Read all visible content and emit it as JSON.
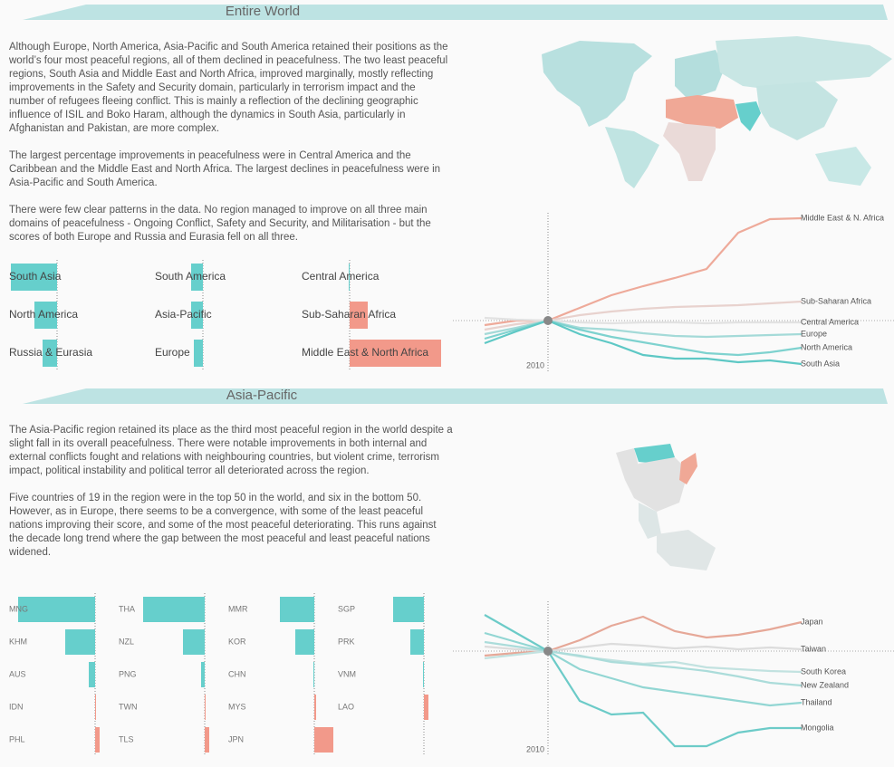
{
  "sections": [
    {
      "title": "Entire World",
      "paragraphs": [
        "Although Europe, North America, Asia-Pacific and South America retained their positions as the world’s four most peaceful regions, all of them declined in peacefulness. The two least peaceful regions, South Asia and Middle East and North Africa, improved marginally, mostly reflecting improvements in the Safety and Security domain, particularly in terrorism impact and the number of refugees fleeing conflict. This is mainly a reflection of the declining geographic influence of ISIL and Boko Haram, although the dynamics in South Asia, particularly in Afghanistan and Pakistan, are more complex.",
        "The largest percentage improvements in peacefulness were in Central America and the Caribbean and the Middle East and North Africa. The largest declines in peacefulness were in Asia-Pacific and South America.",
        "There were few clear patterns in the data. No region managed to improve on all three main domains of peacefulness - Ongoing Conflict, Safety and Security, and Militarisation - but the scores of both Europe and Russia and Eurasia fell on all three."
      ],
      "bars": {
        "type": "bar",
        "categories": [
          "South Asia",
          "North America",
          "Russia & Eurasia",
          "South America",
          "Asia-Pacific",
          "Europe",
          "Central America",
          "Sub-Saharan Africa",
          "Middle East & North Africa"
        ],
        "values": [
          -51,
          -25,
          -16,
          -13,
          -13,
          -10,
          -1,
          20,
          101
        ],
        "colors": {
          "negative": "#66cfcc",
          "positive": "#f2998a"
        }
      },
      "lines": {
        "type": "line",
        "categories": [
          null,
          null,
          "2010",
          null,
          null,
          null,
          null,
          null,
          null,
          null,
          null
        ],
        "ylim": [
          -56,
          119
        ],
        "series": [
          {
            "name": "Middle East & N. Africa",
            "color": "#eeaa9a",
            "values": [
              -5,
              0,
              0,
              14,
              28,
              38,
              47,
              57,
              97,
              112,
              113
            ]
          },
          {
            "name": "Sub-Saharan Africa",
            "color": "#e8d2ce",
            "values": [
              -10,
              -4,
              0,
              6,
              10,
              13,
              15,
              16,
              17,
              19,
              21
            ]
          },
          {
            "name": "Central America",
            "color": "#e2e2e2",
            "values": [
              3,
              1,
              0,
              -2,
              -3,
              -2,
              -2,
              -3,
              -2,
              -2,
              -2
            ]
          },
          {
            "name": "Europe",
            "color": "#a4dad8",
            "values": [
              -15,
              -8,
              0,
              -8,
              -10,
              -14,
              -17,
              -18,
              -17,
              -16,
              -15
            ]
          },
          {
            "name": "North America",
            "color": "#7ed2cf",
            "values": [
              -20,
              -10,
              0,
              -10,
              -18,
              -24,
              -30,
              -36,
              -38,
              -35,
              -30
            ]
          },
          {
            "name": "South Asia",
            "color": "#5ec8c5",
            "values": [
              -25,
              -12,
              0,
              -15,
              -25,
              -38,
              -42,
              -42,
              -46,
              -44,
              -48
            ]
          }
        ]
      }
    },
    {
      "title": "Asia-Pacific",
      "paragraphs": [
        "The Asia-Pacific region retained its place as the third most peaceful region in the world despite a slight fall in its overall peacefulness. There were notable improvements in both internal and external conflicts fought and relations with neighbouring countries, but violent crime, terrorism impact, political instability and political terror all deteriorated across the region.",
        "Five countries of 19 in the region were in the top 50 in the world, and six in the bottom 50. However, as in Europe, there seems to be a convergence, with some of the least peaceful nations improving their score, and some of the most peaceful deteriorating. This runs against the decade long trend where the gap between the most peaceful and least peaceful nations widened."
      ],
      "bars": {
        "type": "bar",
        "categories": [
          "MNG",
          "KHM",
          "AUS",
          "IDN",
          "PHL",
          "THA",
          "NZL",
          "PNG",
          "TWN",
          "TLS",
          "MMR",
          "KOR",
          "CHN",
          "MYS",
          "JPN",
          "SGP",
          "PRK",
          "VNM",
          "LAO"
        ],
        "values": [
          -85,
          -33,
          -7,
          1,
          5,
          -68,
          -24,
          -4,
          1,
          5,
          -38,
          -21,
          -1,
          2,
          21,
          -34,
          -15,
          -1,
          5
        ],
        "colors": {
          "negative": "#66cfcc",
          "positive": "#f2998a"
        }
      },
      "lines": {
        "type": "line",
        "categories": [
          null,
          null,
          "2010",
          null,
          null,
          null,
          null,
          null,
          null,
          null,
          null
        ],
        "ylim": [
          -115,
          55
        ],
        "series": [
          {
            "name": "Japan",
            "color": "#e6a898",
            "values": [
              -5,
              -2,
              0,
              12,
              28,
              38,
              22,
              15,
              18,
              24,
              32
            ]
          },
          {
            "name": "Taiwan",
            "color": "#dcdcdc",
            "values": [
              5,
              2,
              0,
              4,
              8,
              6,
              3,
              5,
              2,
              4,
              2
            ]
          },
          {
            "name": "South Korea",
            "color": "#c2e2e0",
            "values": [
              -8,
              -4,
              0,
              -6,
              -10,
              -14,
              -12,
              -18,
              -20,
              -22,
              -23
            ]
          },
          {
            "name": "New Zealand",
            "color": "#abdcda",
            "values": [
              10,
              5,
              0,
              -5,
              -12,
              -15,
              -18,
              -22,
              -28,
              -35,
              -38
            ]
          },
          {
            "name": "Thailand",
            "color": "#92d6d3",
            "values": [
              20,
              10,
              0,
              -20,
              -30,
              -40,
              -45,
              -50,
              -55,
              -60,
              -57
            ]
          },
          {
            "name": "Mongolia",
            "color": "#6ccbc8",
            "values": [
              40,
              20,
              0,
              -55,
              -70,
              -68,
              -105,
              -105,
              -90,
              -85,
              -85
            ]
          }
        ]
      }
    }
  ]
}
